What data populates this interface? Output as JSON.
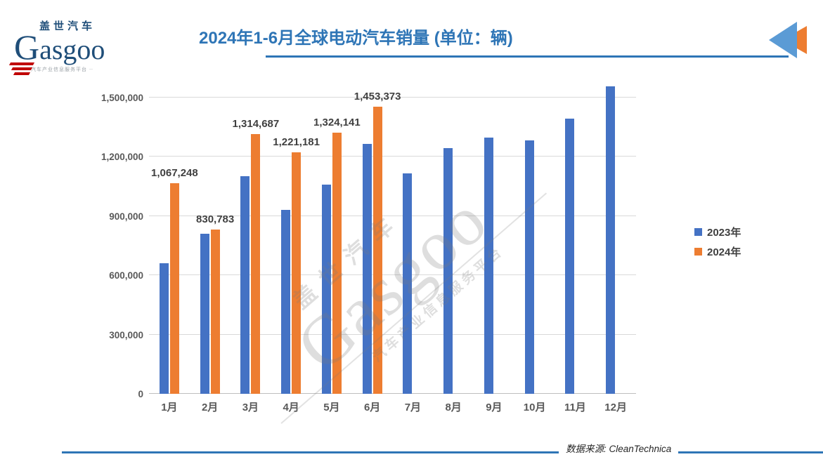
{
  "header": {
    "logo": {
      "cn": "盖世汽车",
      "en": "Gasgoo",
      "tagline": "汽车产业信息服务平台"
    },
    "title": "2024年1-6月全球电动汽车销量 (单位：辆)",
    "accent_color": "#2E75B6"
  },
  "chart_data": {
    "type": "bar",
    "title": "2024年1-6月全球电动汽车销量 (单位：辆)",
    "unit": "辆",
    "categories": [
      "1月",
      "2月",
      "3月",
      "4月",
      "5月",
      "6月",
      "7月",
      "8月",
      "9月",
      "10月",
      "11月",
      "12月"
    ],
    "series": [
      {
        "name": "2023年",
        "color": "#4472C4",
        "values": [
          663000,
          812000,
          1103000,
          931000,
          1058000,
          1266000,
          1115000,
          1243000,
          1297000,
          1284000,
          1392000,
          1557000
        ]
      },
      {
        "name": "2024年",
        "color": "#ED7D31",
        "values": [
          1067248,
          830783,
          1314687,
          1221181,
          1324141,
          1453373,
          null,
          null,
          null,
          null,
          null,
          null
        ]
      }
    ],
    "data_labels_2024": [
      "1,067,248",
      "830,783",
      "1,314,687",
      "1,221,181",
      "1,324,141",
      "1,453,373"
    ],
    "ylim": [
      0,
      1500000
    ],
    "yticks": [
      0,
      300000,
      600000,
      900000,
      1200000,
      1500000
    ],
    "ytick_labels": [
      "0",
      "300,000",
      "600,000",
      "900,000",
      "1,200,000",
      "1,500,000"
    ],
    "grid": true,
    "legend_position": "right"
  },
  "legend": [
    {
      "label": "2023年",
      "color": "#4472C4"
    },
    {
      "label": "2024年",
      "color": "#ED7D31"
    }
  ],
  "watermark": {
    "cn": "盖世汽车",
    "en": "Gasgoo",
    "tagline": "汽车产业信息服务平台"
  },
  "footer": {
    "source": "数据来源: CleanTechnica"
  }
}
